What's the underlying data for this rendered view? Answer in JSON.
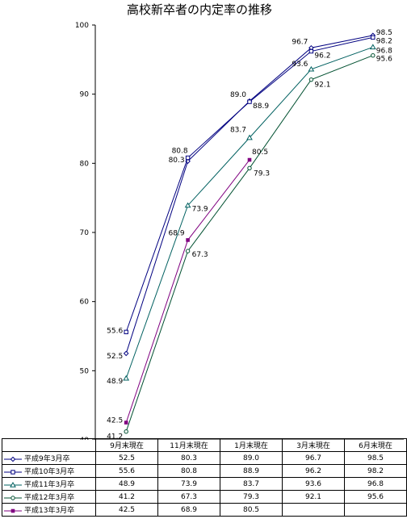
{
  "chart_data": {
    "type": "line",
    "title": "高校新卒者の内定率の推移",
    "categories": [
      "9月末現在",
      "11月末現在",
      "1月末現在",
      "3月末現在",
      "6月末現在"
    ],
    "ylim": [
      40,
      100
    ],
    "yticks": [
      "40",
      "50",
      "60",
      "70",
      "80",
      "90",
      "100"
    ],
    "grid": false,
    "series": [
      {
        "name": "平成9年3月卒",
        "values": [
          52.5,
          80.3,
          89.0,
          96.7,
          98.5
        ],
        "labels": [
          "52.5",
          "80.3",
          "89.0",
          "96.7",
          "98.5"
        ],
        "color": "#000080",
        "marker": "diamond"
      },
      {
        "name": "平成10年3月卒",
        "values": [
          55.6,
          80.8,
          88.9,
          96.2,
          98.2
        ],
        "labels": [
          "55.6",
          "80.8",
          "88.9",
          "96.2",
          "98.2"
        ],
        "color": "#000080",
        "marker": "square"
      },
      {
        "name": "平成11年3月卒",
        "values": [
          48.9,
          73.9,
          83.7,
          93.6,
          96.8
        ],
        "labels": [
          "48.9",
          "73.9",
          "83.7",
          "93.6",
          "96.8"
        ],
        "color": "#006060",
        "marker": "triangle"
      },
      {
        "name": "平成12年3月卒",
        "values": [
          41.2,
          67.3,
          79.3,
          92.1,
          95.6
        ],
        "labels": [
          "41.2",
          "67.3",
          "79.3",
          "92.1",
          "95.6"
        ],
        "color": "#005030",
        "marker": "circle"
      },
      {
        "name": "平成13年3月卒",
        "values": [
          42.5,
          68.9,
          80.5,
          null,
          null
        ],
        "labels": [
          "42.5",
          "68.9",
          "80.5",
          "",
          ""
        ],
        "color": "#800080",
        "marker": "star"
      }
    ]
  }
}
